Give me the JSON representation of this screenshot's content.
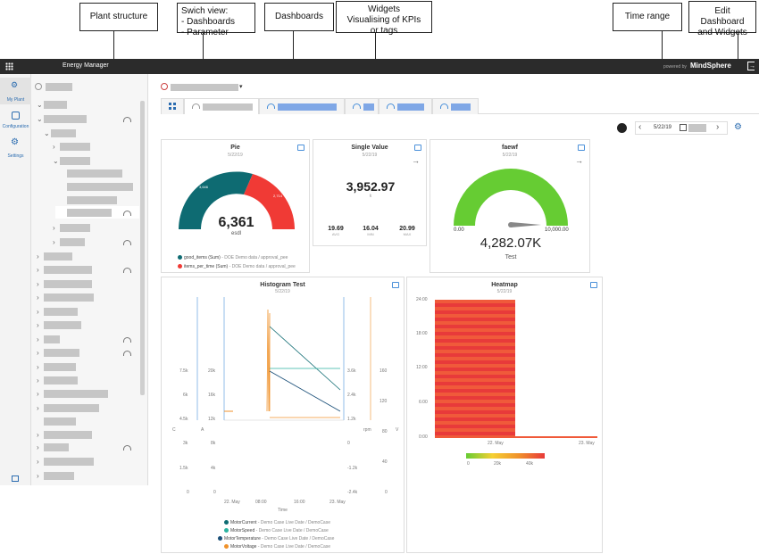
{
  "callouts": {
    "plant_structure": "Plant structure",
    "switch_view": [
      "Swich view:",
      "- Dashboards",
      "- Parameter"
    ],
    "dashboards": "Dashboards",
    "widgets": [
      "Widgets",
      "Visualising of KPIs",
      "or tags"
    ],
    "time_range": "Time range",
    "edit": [
      "Edit Dashboard",
      "and Widgets"
    ]
  },
  "topbar": {
    "app_title": "Energy Manager",
    "powered_by": "powered by",
    "brand": "MindSphere"
  },
  "leftrail": {
    "items": [
      {
        "label": "My Plant",
        "icon": "plant-icon"
      },
      {
        "label": "Configuration",
        "icon": "configuration-icon"
      },
      {
        "label": "Settings",
        "icon": "settings-icon"
      }
    ]
  },
  "toolbar": {
    "date": "5/22/19"
  },
  "widgets": {
    "pie": {
      "title": "Pie",
      "date": "5/22/19",
      "value": "6,361",
      "unit": "esdl",
      "seg1_label": "3,646",
      "seg2_label": "2,714",
      "legend": [
        {
          "label": "good_items (Sum)",
          "source": "- DOE Demo data / approval_pee",
          "color": "#0e6b72"
        },
        {
          "label": "items_per_time (Sum)",
          "source": "- DOE Demo data / approval_pee",
          "color": "#f03a35"
        }
      ]
    },
    "single": {
      "title": "Single Value",
      "date": "5/22/19",
      "value": "3,952.97",
      "unit": "k",
      "stats": [
        {
          "value": "19.69",
          "label": "AVG"
        },
        {
          "value": "16.04",
          "label": "MIN"
        },
        {
          "value": "20.99",
          "label": "MAX"
        }
      ]
    },
    "gauge": {
      "title": "faewf",
      "date": "5/22/19",
      "value": "4,282.07K",
      "unit": "Test",
      "min": "0.00",
      "max": "10,000.00"
    },
    "histogram": {
      "title": "Histogram Test",
      "date": "5/22/19",
      "xlabel": "Time",
      "x_ticks": [
        "22. May",
        "08:00",
        "16:00",
        "23. May"
      ],
      "y1_ticks": [
        "7.5k",
        "6k",
        "4.5k",
        "3k",
        "1.5k",
        "0"
      ],
      "y2_ticks": [
        "20k",
        "16k",
        "12k",
        "8k",
        "4k",
        "0"
      ],
      "y3_ticks": [
        "3.6k",
        "2.4k",
        "1.2k",
        "0",
        "-1.2k",
        "-2.4k"
      ],
      "y4_ticks": [
        "160",
        "120",
        "80",
        "40",
        "0"
      ],
      "y1_label": "C",
      "y2_label": "A",
      "y3_label": "rpm",
      "y4_label": "V",
      "legend": [
        {
          "label": "MotorCurrent",
          "source": "- Demo Case Live Date / DemoCase",
          "color": "#0e6b72"
        },
        {
          "label": "MotorSpeed",
          "source": "- Demo Case Live Date / DemoCase",
          "color": "#2bb3a0"
        },
        {
          "label": "MotorTemperature",
          "source": "- Demo Case Live Date / DemoCase",
          "color": "#1a4f78"
        },
        {
          "label": "MotorVoltage",
          "source": "- Demo Case Live Date / DemoCase",
          "color": "#f0922b"
        }
      ]
    },
    "heatmap": {
      "title": "Heatmap",
      "date": "5/22/19",
      "y_ticks": [
        "24:00",
        "18:00",
        "12:00",
        "6:00",
        "0:00"
      ],
      "x_ticks": [
        "22. May",
        "23. May"
      ],
      "scale_ticks": [
        "0",
        "20k",
        "40k"
      ]
    }
  }
}
